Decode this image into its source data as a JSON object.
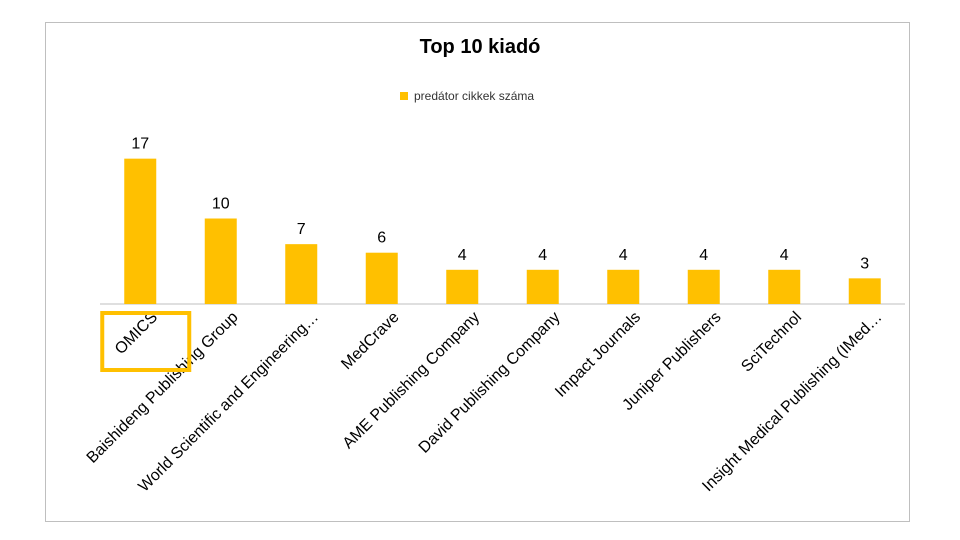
{
  "chart_data": {
    "type": "bar",
    "title": "Top 10 kiadó",
    "categories": [
      "OMICS",
      "Baishideng Publishing Group",
      "World Scientific and Engineering…",
      "MedCrave",
      "AME Publishing Company",
      "David Publishing Company",
      "Impact Journals",
      "Juniper Publishers",
      "SciTechnol",
      "Insight Medical Publishing (IMed…"
    ],
    "series": [
      {
        "name": "predátor cikkek száma",
        "values": [
          17,
          10,
          7,
          6,
          4,
          4,
          4,
          4,
          4,
          3
        ]
      }
    ],
    "ylim": [
      0,
      18
    ],
    "legend": "top",
    "grid": false,
    "bar_color": "#ffc000",
    "highlight_category": "OMICS",
    "highlight_color": "#ffc000"
  }
}
